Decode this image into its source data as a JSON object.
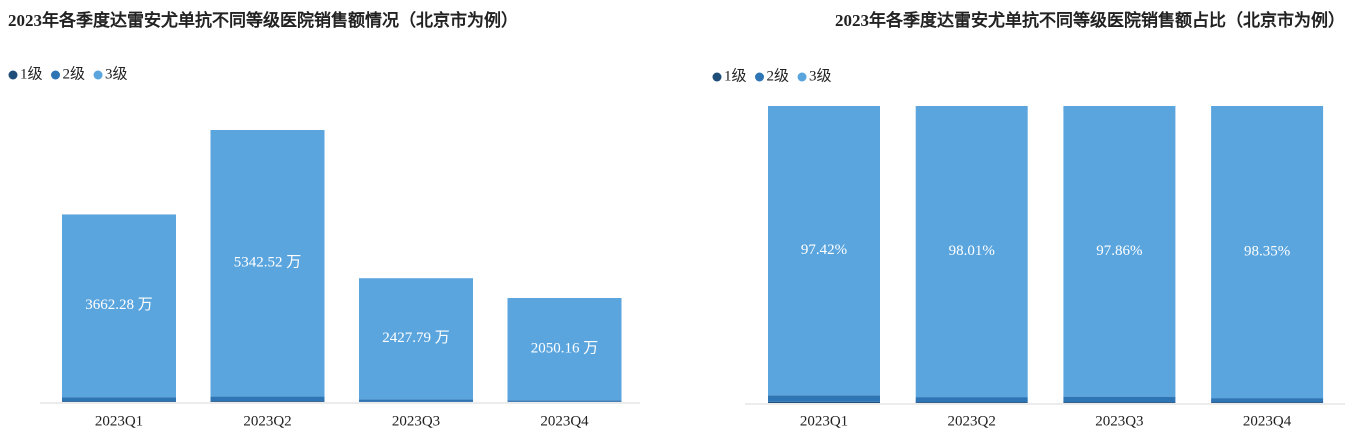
{
  "chart_data": [
    {
      "type": "stacked-bar",
      "title": "2023年各季度达雷安尤单抗不同等级医院销售额情况（北京市为例）",
      "categories": [
        "2023Q1",
        "2023Q2",
        "2023Q3",
        "2023Q4"
      ],
      "series": [
        {
          "name": "1级",
          "color": "#1f4e79",
          "values": [
            15,
            16,
            7,
            6
          ]
        },
        {
          "name": "2级",
          "color": "#2e75b6",
          "values": [
            82,
            93,
            46,
            28
          ]
        },
        {
          "name": "3级",
          "color": "#5aa5de",
          "values": [
            3662.28,
            5342.52,
            2427.79,
            2050.16
          ],
          "value_labels": [
            "3662.28 万",
            "5342.52 万",
            "2427.79 万",
            "2050.16 万"
          ]
        }
      ]
    },
    {
      "type": "stacked-bar",
      "title": "2023年各季度达雷安尤单抗不同等级医院销售额占比（北京市为例）",
      "categories": [
        "2023Q1",
        "2023Q2",
        "2023Q3",
        "2023Q4"
      ],
      "series": [
        {
          "name": "1级",
          "color": "#1f4e79",
          "values": [
            0.4,
            0.3,
            0.3,
            0.3
          ]
        },
        {
          "name": "2级",
          "color": "#2e75b6",
          "values": [
            2.18,
            1.69,
            1.84,
            1.35
          ]
        },
        {
          "name": "3级",
          "color": "#5aa5de",
          "values": [
            97.42,
            98.01,
            97.86,
            98.35
          ],
          "value_labels": [
            "97.42%",
            "98.01%",
            "97.86%",
            "98.35%"
          ]
        }
      ]
    }
  ]
}
